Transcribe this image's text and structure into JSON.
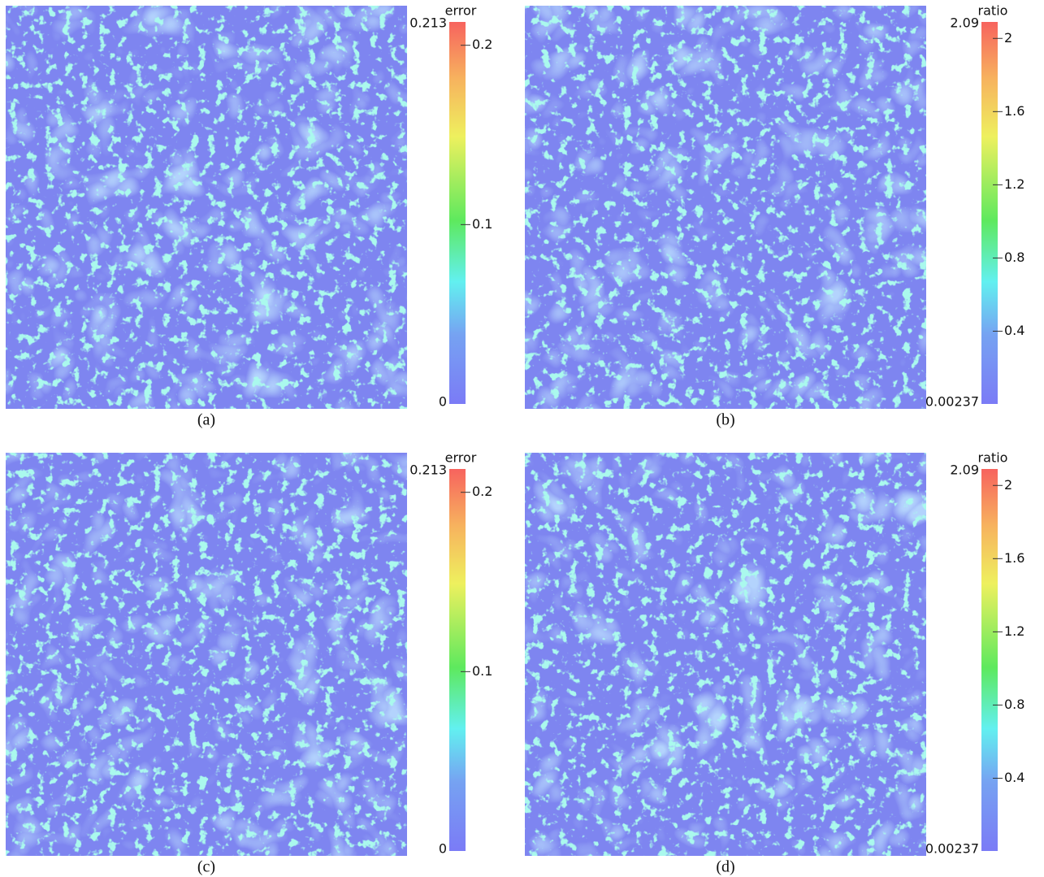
{
  "panels": [
    {
      "caption": "(a)",
      "colorbar": {
        "title": "error",
        "range": [
          0,
          0.213
        ],
        "ticks": [
          0.1,
          0.2
        ]
      }
    },
    {
      "caption": "(b)",
      "colorbar": {
        "title": "ratio",
        "range": [
          0.00237,
          2.09
        ],
        "ticks": [
          0.4,
          0.8,
          1.2,
          1.6,
          2
        ]
      }
    },
    {
      "caption": "(c)",
      "colorbar": {
        "title": "error",
        "range": [
          0,
          0.213
        ],
        "ticks": [
          0.1,
          0.2
        ]
      }
    },
    {
      "caption": "(d)",
      "colorbar": {
        "title": "ratio",
        "range": [
          0.00237,
          2.09
        ],
        "ticks": [
          0.4,
          0.8,
          1.2,
          1.6,
          2
        ]
      }
    }
  ]
}
